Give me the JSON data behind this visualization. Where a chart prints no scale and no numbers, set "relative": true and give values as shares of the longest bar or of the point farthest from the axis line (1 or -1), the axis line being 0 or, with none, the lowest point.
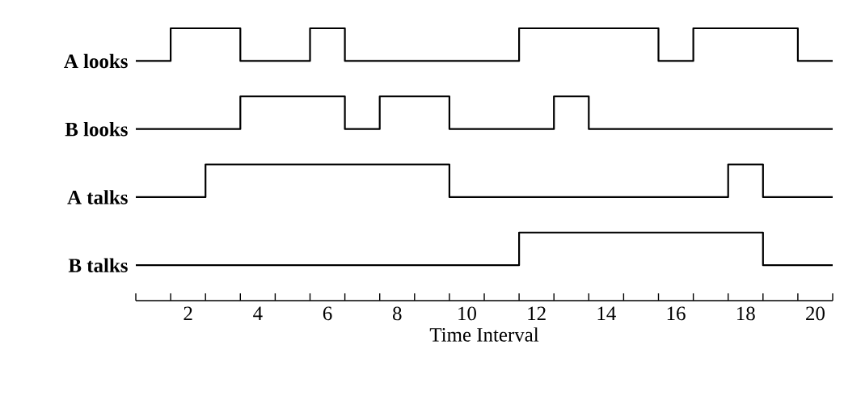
{
  "chart_data": {
    "type": "step",
    "relative": true,
    "xlabel": "Time Interval",
    "x": [
      0.5,
      1.5,
      2.5,
      3.5,
      4.5,
      5.5,
      6.5,
      7.5,
      8.5,
      9.5,
      10.5,
      11.5,
      12.5,
      13.5,
      14.5,
      15.5,
      16.5,
      17.5,
      18.5,
      19.5,
      20.5
    ],
    "series": [
      {
        "name": "A looks",
        "color": "#000000",
        "values": [
          0.88,
          1,
          1,
          0.88,
          0.88,
          1,
          0.88,
          0.88,
          0.88,
          0.88,
          0.88,
          1,
          1,
          1,
          1,
          0.88,
          1,
          1,
          1,
          0.88,
          0.88
        ]
      },
      {
        "name": "B looks",
        "color": "#000000",
        "values": [
          0.63,
          0.63,
          0.63,
          0.75,
          0.75,
          0.75,
          0.63,
          0.75,
          0.75,
          0.63,
          0.63,
          0.63,
          0.75,
          0.63,
          0.63,
          0.63,
          0.63,
          0.63,
          0.63,
          0.63,
          0.63
        ]
      },
      {
        "name": "A talks",
        "color": "#000000",
        "values": [
          0.38,
          0.38,
          0.5,
          0.5,
          0.5,
          0.5,
          0.5,
          0.5,
          0.5,
          0.38,
          0.38,
          0.38,
          0.38,
          0.38,
          0.38,
          0.38,
          0.38,
          0.5,
          0.38,
          0.38,
          0.38
        ]
      },
      {
        "name": "B talks",
        "color": "#000000",
        "values": [
          0.13,
          0.13,
          0.13,
          0.13,
          0.13,
          0.13,
          0.13,
          0.13,
          0.13,
          0.13,
          0.13,
          0.25,
          0.25,
          0.25,
          0.25,
          0.25,
          0.25,
          0.25,
          0.13,
          0.13,
          0.13
        ]
      }
    ],
    "xlim": [
      0.5,
      20.5
    ],
    "xticks": [
      2,
      4,
      6,
      8,
      10,
      12,
      14,
      16,
      18,
      20,
      {
        "value": 0.5,
        "label": null
      },
      {
        "value": 1.5,
        "label": null
      },
      {
        "value": 2.5,
        "label": null
      },
      {
        "value": 3.5,
        "label": null
      },
      {
        "value": 4.5,
        "label": null
      },
      {
        "value": 5.5,
        "label": null
      },
      {
        "value": 6.5,
        "label": null
      },
      {
        "value": 7.5,
        "label": null
      },
      {
        "value": 8.5,
        "label": null
      },
      {
        "value": 9.5,
        "label": null
      },
      {
        "value": 10.5,
        "label": null
      },
      {
        "value": 11.5,
        "label": null
      },
      {
        "value": 12.5,
        "label": null
      },
      {
        "value": 13.5,
        "label": null
      },
      {
        "value": 14.5,
        "label": null
      },
      {
        "value": 15.5,
        "label": null
      },
      {
        "value": 16.5,
        "label": null
      },
      {
        "value": 17.5,
        "label": null
      },
      {
        "value": 18.5,
        "label": null
      },
      {
        "value": 19.5,
        "label": null
      },
      {
        "value": 20.5,
        "label": null
      }
    ],
    "grid": false,
    "legend": false,
    "line_style": "solid",
    "marker": "none"
  }
}
